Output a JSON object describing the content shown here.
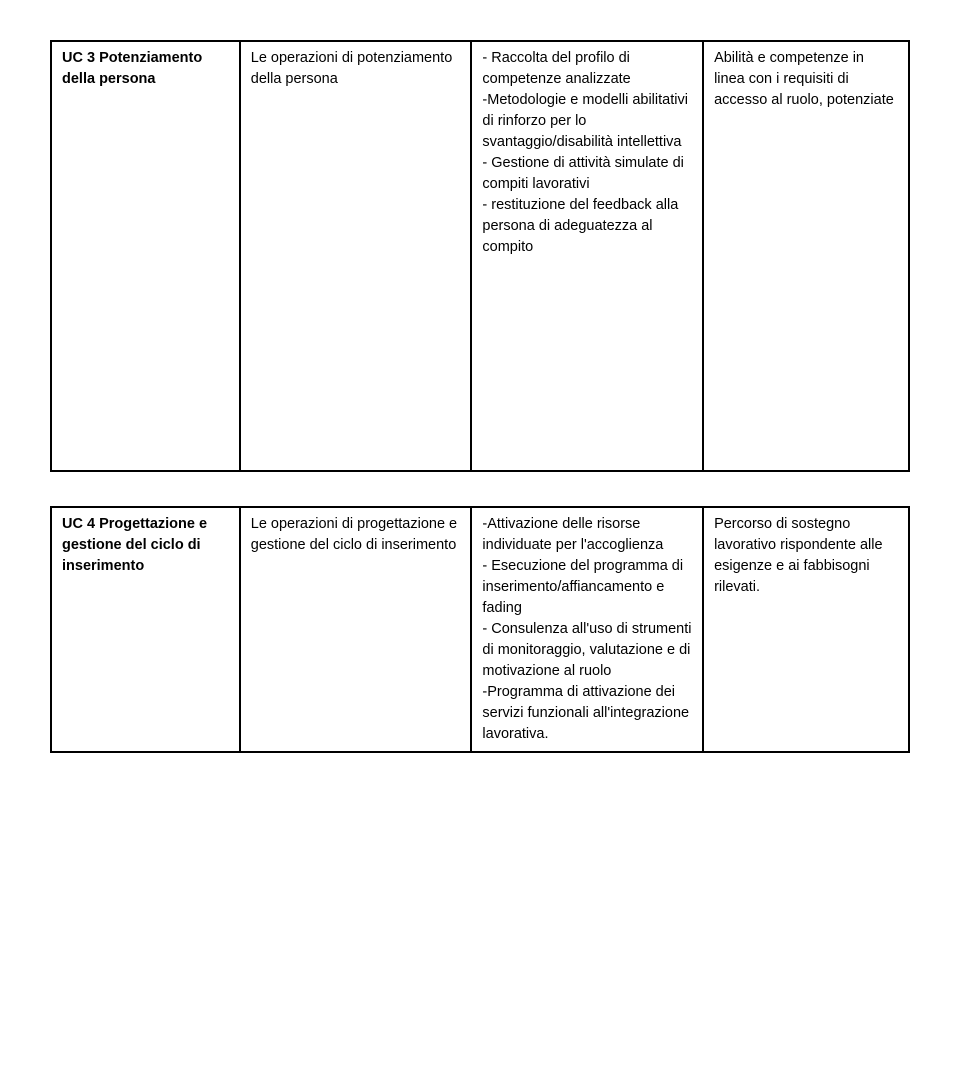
{
  "table1": {
    "row": {
      "c1_bold": "UC 3 Potenziamento della persona",
      "c2": "Le operazioni di potenziamento della persona",
      "c3": "- Raccolta del profilo di competenze analizzate\n-Metodologie e modelli abilitativi di rinforzo per lo svantaggio/disabilità intellettiva\n- Gestione di attività simulate di compiti lavorativi\n- restituzione del feedback alla persona di adeguatezza al compito",
      "c4": "Abilità e competenze in linea con i requisiti di accesso al ruolo, potenziate"
    }
  },
  "table2": {
    "row": {
      "c1_bold": "UC 4 Progettazione e gestione del ciclo di inserimento",
      "c2": "Le operazioni di progettazione e gestione del ciclo di inserimento",
      "c3": "-Attivazione delle risorse individuate  per l'accoglienza\n- Esecuzione del programma di inserimento/affiancamento e fading\n- Consulenza all'uso di strumenti di monitoraggio, valutazione e di motivazione al ruolo\n-Programma di attivazione dei  servizi funzionali all'integrazione lavorativa.",
      "c4": "Percorso di sostegno lavorativo rispondente alle esigenze e ai fabbisogni rilevati."
    }
  }
}
